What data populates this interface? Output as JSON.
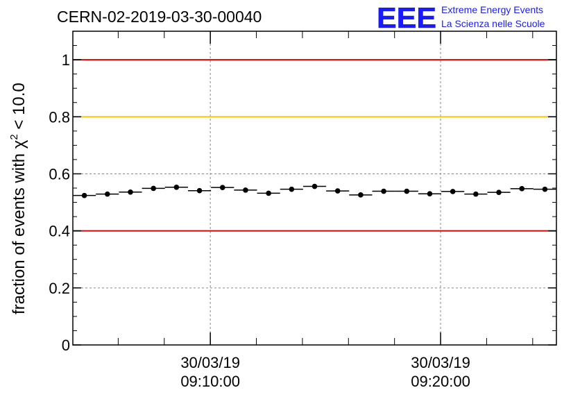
{
  "header": {
    "run_title": "CERN-02-2019-03-30-00040",
    "logo_text": "EEE",
    "project_line1": "Extreme Energy Events",
    "project_line2": "La Scienza nelle Scuole"
  },
  "colors": {
    "logo_blue": "#1a1aff",
    "threshold_red": "#e00000",
    "threshold_yellow": "#ffc800",
    "grid": "#888888",
    "data": "#000000"
  },
  "chart_data": {
    "type": "scatter",
    "title": "CERN-02-2019-03-30-00040",
    "xlabel": "",
    "ylabel_prefix": "fraction of events with ",
    "ylabel_symbol": "χ",
    "ylabel_exp": "2",
    "ylabel_suffix": " < 10.0",
    "x_unit": "minutes since 30/03/19 09:04:02",
    "xlim": [
      0,
      21.0
    ],
    "ylim": [
      0,
      1.1
    ],
    "yticks": [
      0,
      0.2,
      0.4,
      0.6,
      0.8,
      1
    ],
    "ytick_labels": [
      "0",
      "0.2",
      "0.4",
      "0.6",
      "0.8",
      "1"
    ],
    "xticks": [
      {
        "x": 5.97,
        "date": "30/03/19",
        "time": "09:10:00"
      },
      {
        "x": 15.97,
        "date": "30/03/19",
        "time": "09:20:00"
      }
    ],
    "grid": true,
    "reference_lines": [
      {
        "y": 1.0,
        "color": "red"
      },
      {
        "y": 0.8,
        "color": "yellow"
      },
      {
        "y": 0.4,
        "color": "red"
      }
    ],
    "bin_width": 1.0,
    "x": [
      0.5,
      1.5,
      2.5,
      3.5,
      4.5,
      5.5,
      6.5,
      7.5,
      8.5,
      9.5,
      10.5,
      11.5,
      12.5,
      13.5,
      14.5,
      15.5,
      16.5,
      17.5,
      18.5,
      19.5,
      20.5
    ],
    "values": [
      0.524,
      0.529,
      0.536,
      0.549,
      0.553,
      0.541,
      0.552,
      0.543,
      0.532,
      0.546,
      0.556,
      0.54,
      0.526,
      0.539,
      0.539,
      0.53,
      0.538,
      0.529,
      0.535,
      0.548,
      0.546
    ],
    "errors": [
      0.008,
      0.008,
      0.008,
      0.008,
      0.008,
      0.008,
      0.008,
      0.008,
      0.008,
      0.008,
      0.008,
      0.008,
      0.008,
      0.008,
      0.008,
      0.008,
      0.008,
      0.008,
      0.008,
      0.008,
      0.008
    ]
  }
}
